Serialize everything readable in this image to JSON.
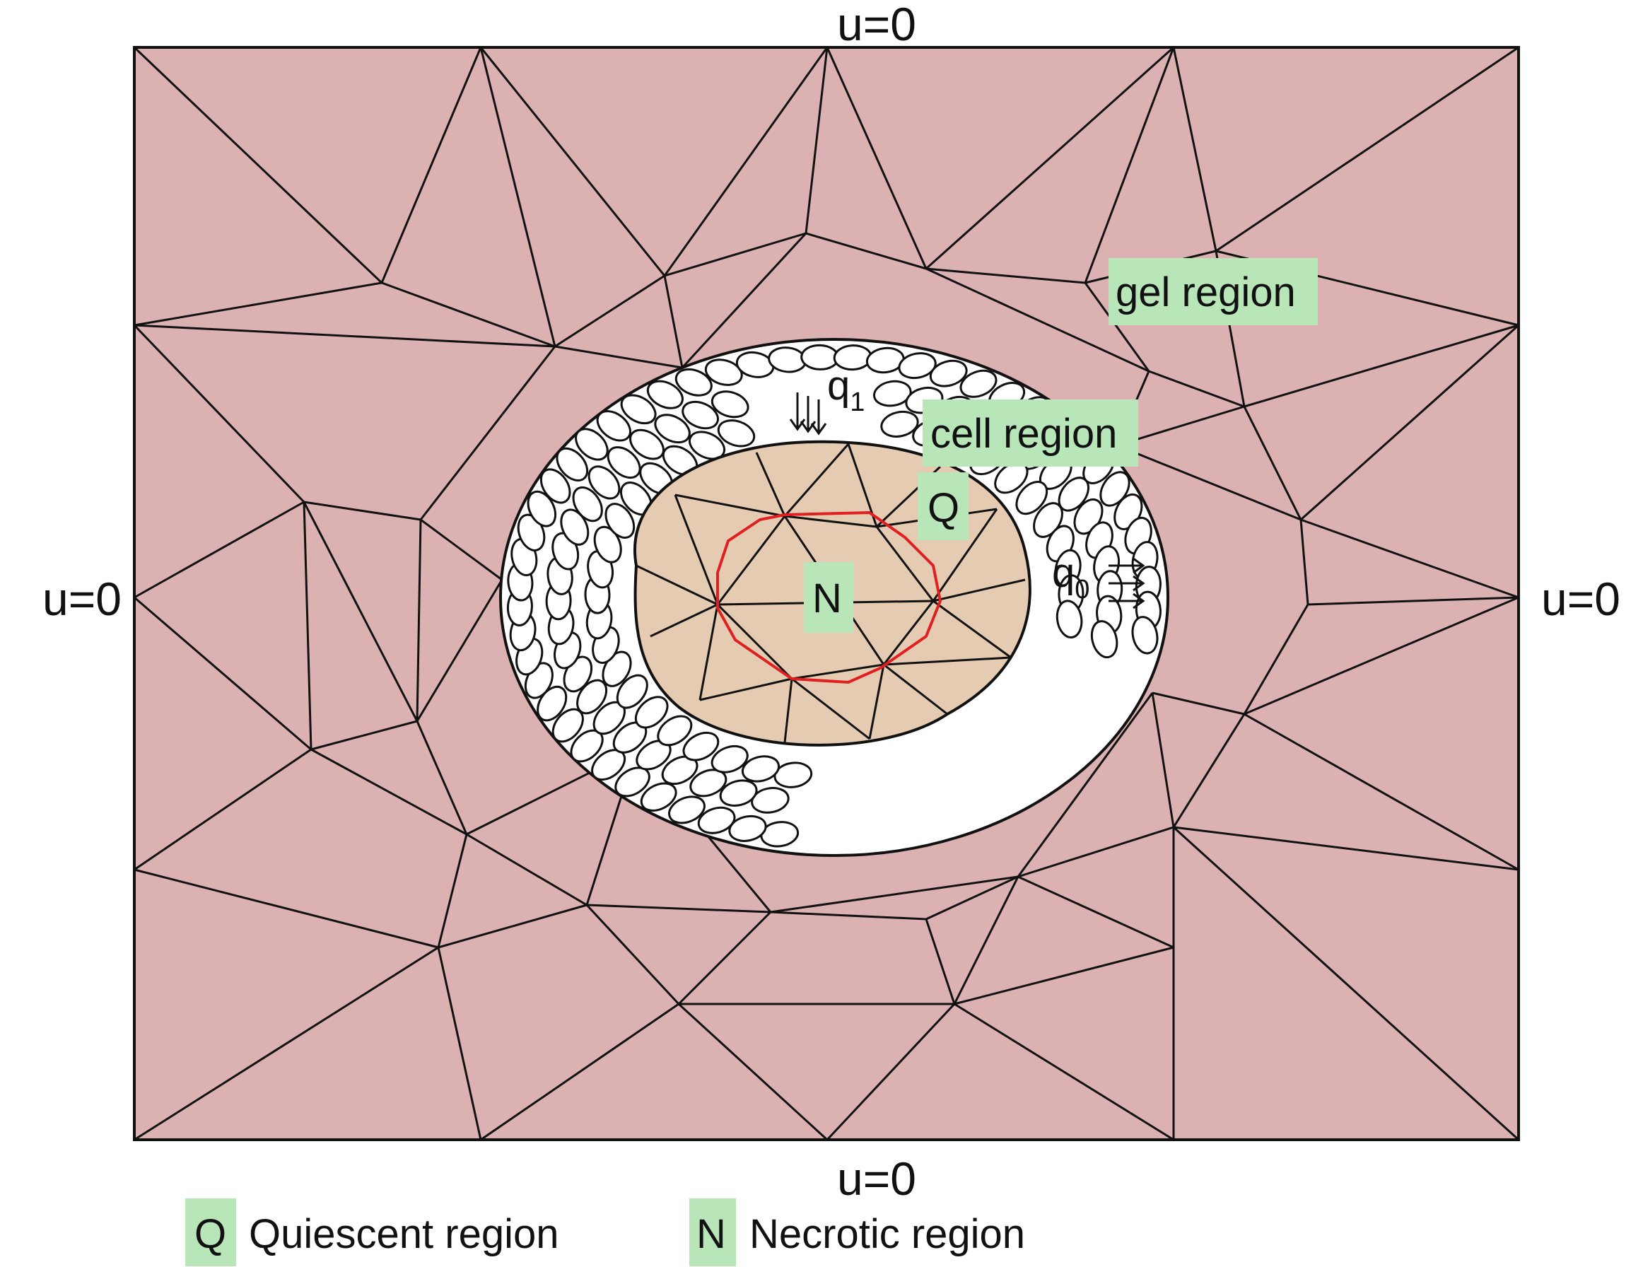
{
  "boundary": {
    "top": "u=0",
    "bottom": "u=0",
    "left": "u=0",
    "right": "u=0"
  },
  "regions": {
    "gel": "gel region",
    "cell": "cell region",
    "quiescent_marker": "Q",
    "necrotic_marker": "N"
  },
  "flux": {
    "inner": "q",
    "inner_sub": "1",
    "outer": "q",
    "outer_sub": "0"
  },
  "legend": {
    "q_key": "Q",
    "q_text": "Quiescent region",
    "n_key": "N",
    "n_text": "Necrotic region"
  },
  "colors": {
    "gel_fill": "#dbb2b1",
    "quiescent_fill": "#e6cbb3",
    "label_bg": "#b8e6b8",
    "necrotic_outline": "#e02020",
    "mesh_line": "#111111"
  }
}
